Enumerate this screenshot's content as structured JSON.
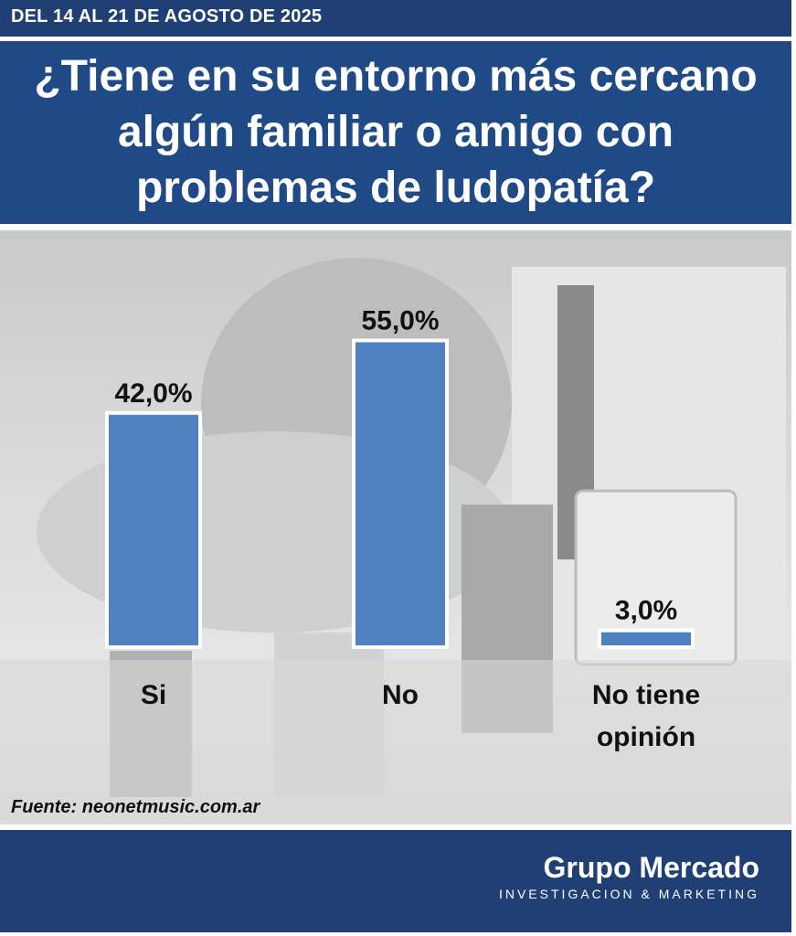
{
  "header": {
    "date_range": "DEL 14 AL 21 DE AGOSTO DE 2025",
    "title": "¿Tiene en su entorno más cercano algún familiar o amigo con problemas de ludopatía?"
  },
  "source": "Fuente: neonetmusic.com.ar",
  "brand": {
    "name": "Grupo Mercado",
    "tagline": "INVESTIGACION & MARKETING"
  },
  "colors": {
    "header_bg": "#1f3f75",
    "title_bg": "#1f4a86",
    "bar_fill": "#4f80bf",
    "bar_stroke": "#ffffff"
  },
  "chart_data": {
    "type": "bar",
    "categories": [
      "Si",
      "No",
      "No tiene opinión"
    ],
    "category_lines": [
      [
        "Si"
      ],
      [
        "No"
      ],
      [
        "No tiene",
        "opinión"
      ]
    ],
    "values": [
      42.0,
      55.0,
      3.0
    ],
    "value_labels": [
      "42,0%",
      "55,0%",
      "3,0%"
    ],
    "unit": "%",
    "ylim": [
      0,
      60
    ],
    "grid": false,
    "legend": "none"
  }
}
